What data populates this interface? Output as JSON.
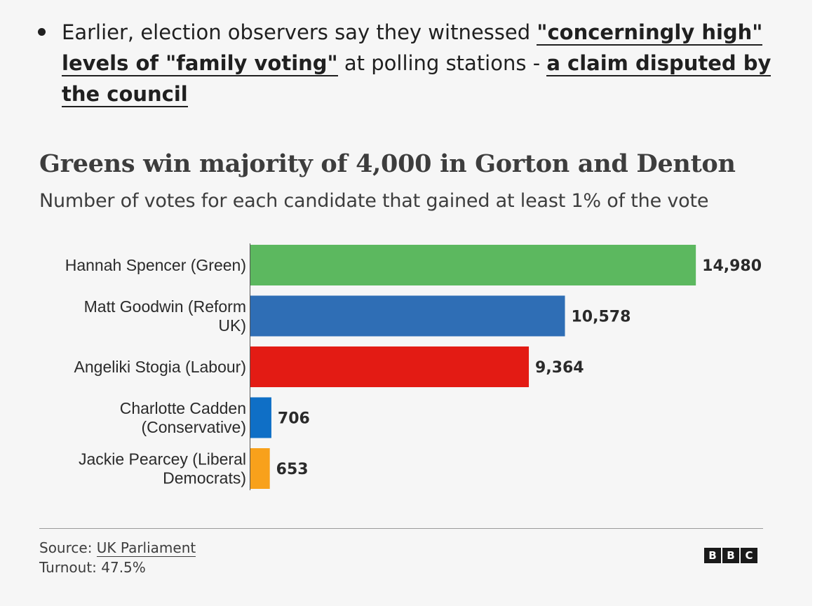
{
  "article": {
    "bullet_before": "Earlier, election observers say they witnessed ",
    "link1": "\"concerningly high\" levels of \"family voting\"",
    "bullet_middle": " at polling stations - ",
    "link2": "a claim disputed by the council"
  },
  "chart_data": {
    "type": "bar",
    "orientation": "horizontal",
    "title": "Greens win majority of 4,000 in Gorton and Denton",
    "subtitle": "Number of votes for each candidate that gained at least 1% of the vote",
    "categories": [
      "Hannah Spencer (Green)",
      "Matt Goodwin (Reform UK)",
      "Angeliki Stogia (Labour)",
      "Charlotte Cadden (Conservative)",
      "Jackie Pearcey (Liberal Democrats)"
    ],
    "category_lines": [
      [
        "Hannah Spencer (Green)"
      ],
      [
        "Matt Goodwin (Reform",
        "UK)"
      ],
      [
        "Angeliki Stogia (Labour)"
      ],
      [
        "Charlotte Cadden",
        "(Conservative)"
      ],
      [
        "Jackie Pearcey (Liberal",
        "Democrats)"
      ]
    ],
    "values": [
      14980,
      10578,
      9364,
      706,
      653
    ],
    "value_labels": [
      "14,980",
      "10,578",
      "9,364",
      "706",
      "653"
    ],
    "colors": [
      "#5cb85f",
      "#2f6eb5",
      "#e31b14",
      "#0f6fc6",
      "#f8a11b"
    ],
    "xlim": [
      0,
      15000
    ],
    "xlabel": "",
    "ylabel": "",
    "grid": false,
    "legend": "none"
  },
  "footer": {
    "source_label": "Source: ",
    "source_link": "UK Parliament",
    "turnout": "Turnout: 47.5%",
    "logo_letters": [
      "B",
      "B",
      "C"
    ]
  }
}
